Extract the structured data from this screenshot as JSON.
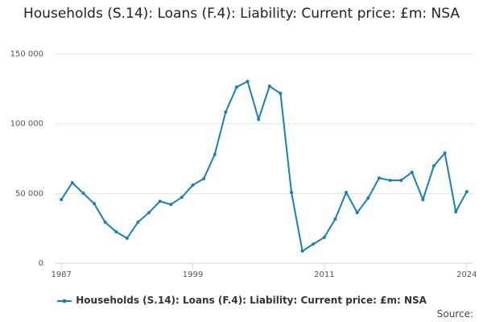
{
  "chart_data": {
    "type": "line",
    "title": "Households (S.14): Loans (F.4): Liability: Current price: £m: NSA",
    "x": [
      1987,
      1988,
      1989,
      1990,
      1991,
      1992,
      1993,
      1994,
      1995,
      1996,
      1997,
      1998,
      1999,
      2000,
      2001,
      2002,
      2003,
      2004,
      2005,
      2006,
      2007,
      2008,
      2009,
      2010,
      2011,
      2012,
      2013,
      2014,
      2015,
      2016,
      2017,
      2018,
      2019,
      2020,
      2021,
      2022,
      2023,
      2024
    ],
    "series": [
      {
        "name": "Households (S.14): Loans (F.4): Liability: Current price: £m: NSA",
        "color": "#1a7fb5",
        "values": [
          45600,
          57700,
          50200,
          42700,
          29400,
          22500,
          17900,
          29500,
          36300,
          44400,
          42100,
          47300,
          56000,
          60600,
          77900,
          108400,
          126300,
          130300,
          103200,
          126900,
          121700,
          50800,
          8700,
          13800,
          18500,
          31700,
          50800,
          36300,
          46700,
          61100,
          59400,
          59400,
          65200,
          45600,
          69800,
          79000,
          36900,
          51300
        ]
      }
    ],
    "xlim": [
      1986.4,
      2024.6
    ],
    "xticks": [
      1987,
      1999,
      2011,
      2024
    ],
    "ylim": [
      0,
      150000
    ],
    "yticks": [
      0,
      {
        "value": 50000,
        "label": "50 000"
      },
      {
        "value": 100000,
        "label": "100 000"
      },
      {
        "value": 150000,
        "label": "150 000"
      }
    ],
    "grid": true,
    "source_label": "Source:"
  }
}
